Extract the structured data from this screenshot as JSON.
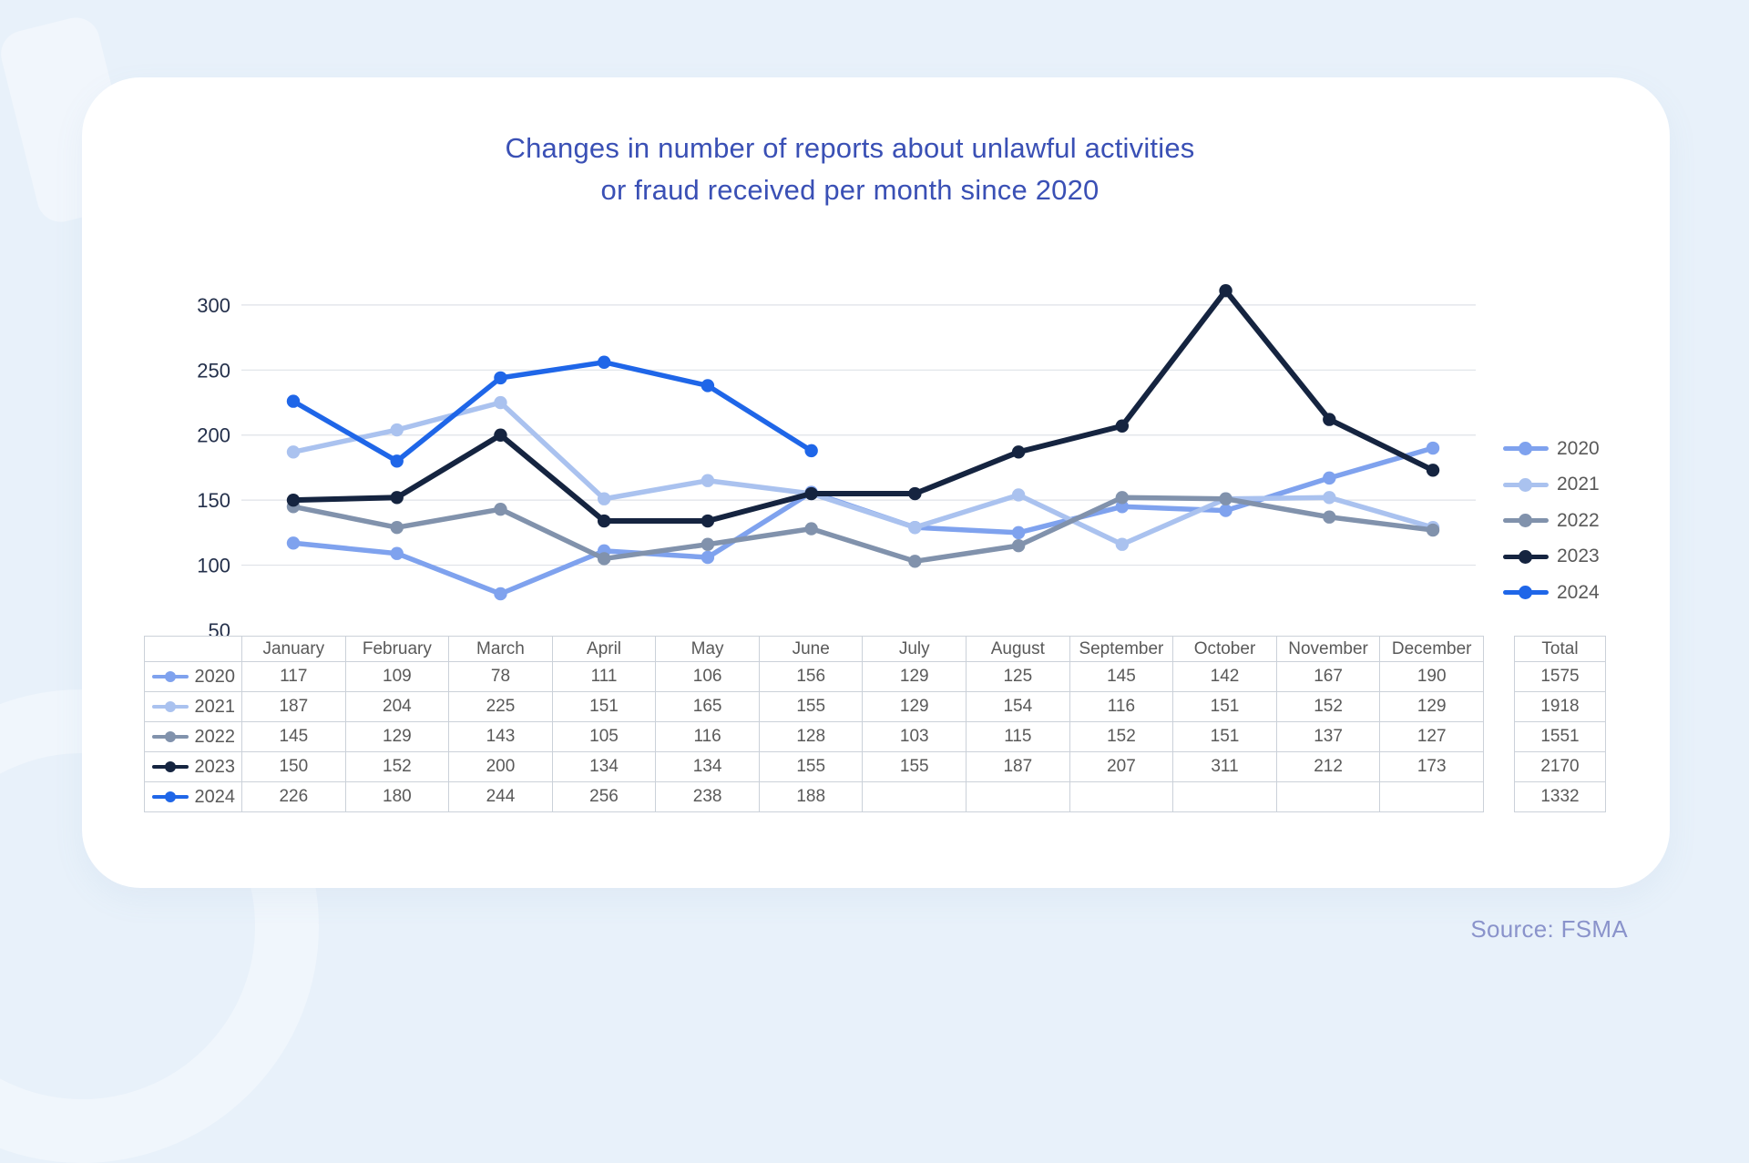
{
  "title": {
    "line1": "Changes in number of reports about unlawful activities",
    "line2": "or fraud received per month since 2020"
  },
  "source": {
    "label": "Source: FSMA"
  },
  "colors": {
    "title_text": "#3A50B5",
    "axis_label_text": "#24304B",
    "table_text": "#595959",
    "gridline": "#DFE2E8",
    "source_text": "#8A93CB",
    "card_background": "#FFFFFF",
    "page_background": "#E8F1FA"
  },
  "chart_data": {
    "type": "line",
    "title": "Changes in number of reports about unlawful activities or fraud received per month since 2020",
    "categories": [
      "January",
      "February",
      "March",
      "April",
      "May",
      "June",
      "July",
      "August",
      "September",
      "October",
      "November",
      "December"
    ],
    "series": [
      {
        "name": "2020",
        "color": "#7FA2EE",
        "values": [
          117,
          109,
          78,
          111,
          106,
          156,
          129,
          125,
          145,
          142,
          167,
          190
        ],
        "total": 1575
      },
      {
        "name": "2021",
        "color": "#AAC2EF",
        "values": [
          187,
          204,
          225,
          151,
          165,
          155,
          129,
          154,
          116,
          151,
          152,
          129
        ],
        "total": 1918
      },
      {
        "name": "2022",
        "color": "#8192AC",
        "values": [
          145,
          129,
          143,
          105,
          116,
          128,
          103,
          115,
          152,
          151,
          137,
          127
        ],
        "total": 1551
      },
      {
        "name": "2023",
        "color": "#152440",
        "values": [
          150,
          152,
          200,
          134,
          134,
          155,
          155,
          187,
          207,
          311,
          212,
          173
        ],
        "total": 2170
      },
      {
        "name": "2024",
        "color": "#1F66E8",
        "values": [
          226,
          180,
          244,
          256,
          238,
          188,
          null,
          null,
          null,
          null,
          null,
          null
        ],
        "total": 1332
      }
    ],
    "ylim": [
      50,
      300
    ],
    "yticks": [
      300,
      250,
      200,
      150,
      100,
      50
    ],
    "grid": true,
    "legend_position": "right",
    "table": {
      "total_header": "Total"
    }
  }
}
